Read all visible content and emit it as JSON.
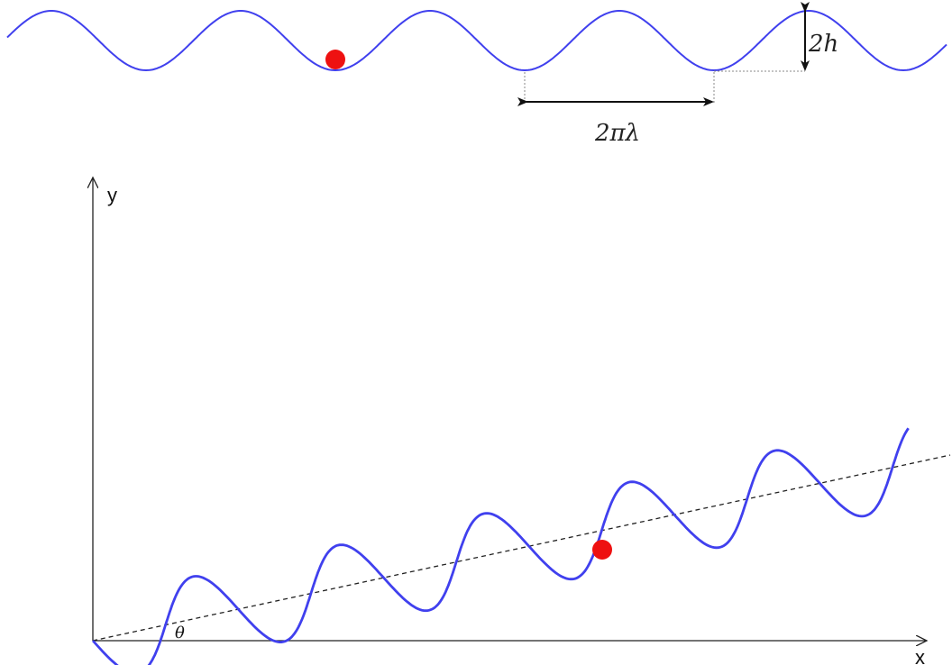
{
  "colors": {
    "wave": "#4040ee",
    "ball": "#ee1111",
    "axis": "#222222",
    "dashed_line": "#222222",
    "guide": "#888888"
  },
  "top_panel": {
    "amplitude_label": "2h",
    "wavelength_label": "2πλ"
  },
  "bottom_panel": {
    "x_axis_label": "x",
    "y_axis_label": "y",
    "angle_label": "θ"
  }
}
